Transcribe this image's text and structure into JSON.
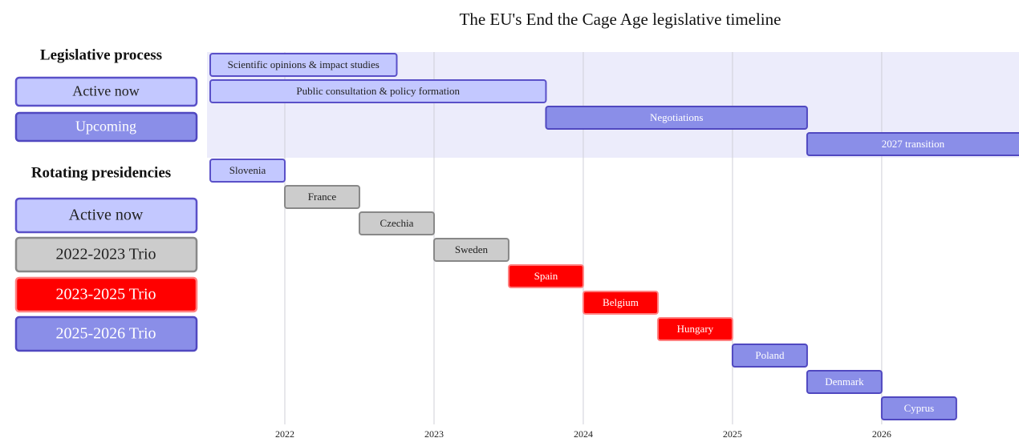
{
  "chart_data": {
    "type": "gantt",
    "title": "The EU's End the Cage Age legislative timeline",
    "xlim": [
      2021.5,
      2026.92
    ],
    "xticks": [
      2022,
      2023,
      2024,
      2025,
      2026
    ],
    "grid": true,
    "legend": [
      {
        "title": "Legislative process",
        "items": [
          {
            "label": "Active now",
            "color": "#c3c8ff",
            "border": "#5a50c8",
            "text_color": "#222222"
          },
          {
            "label": "Upcoming",
            "color": "#8a8ee8",
            "border": "#5048c0",
            "text_color": "#ffffff"
          }
        ]
      },
      {
        "title": "Rotating presidencies",
        "items": [
          {
            "label": "Active now",
            "color": "#c3c8ff",
            "border": "#5a50c8",
            "text_color": "#222222"
          },
          {
            "label": "2022-2023 Trio",
            "color": "#cccccc",
            "border": "#888888",
            "text_color": "#222222"
          },
          {
            "label": "2023-2025 Trio",
            "color": "#ff0000",
            "border": "#ff8080",
            "text_color": "#ffffff"
          },
          {
            "label": "2025-2026 Trio",
            "color": "#8a8ee8",
            "border": "#5048c0",
            "text_color": "#ffffff"
          }
        ]
      }
    ],
    "tasks": [
      {
        "name": "Scientific opinions & impact studies",
        "start": 2021.5,
        "end": 2022.75,
        "color": "#c3c8ff",
        "border": "#5a50c8",
        "text_color": "#222222"
      },
      {
        "name": "Public consultation & policy formation",
        "start": 2021.5,
        "end": 2023.75,
        "color": "#c3c8ff",
        "border": "#5a50c8",
        "text_color": "#222222"
      },
      {
        "name": "Negotiations",
        "start": 2023.75,
        "end": 2025.5,
        "color": "#8a8ee8",
        "border": "#5048c0",
        "text_color": "#ffffff"
      },
      {
        "name": "2027 transition",
        "start": 2025.5,
        "end": 2027,
        "color": "#8a8ee8",
        "border": "#5048c0",
        "text_color": "#ffffff"
      },
      {
        "name": "Slovenia",
        "start": 2021.5,
        "end": 2022,
        "color": "#c3c8ff",
        "border": "#5a50c8",
        "text_color": "#222222"
      },
      {
        "name": "France",
        "start": 2022,
        "end": 2022.5,
        "color": "#cccccc",
        "border": "#888888",
        "text_color": "#222222"
      },
      {
        "name": "Czechia",
        "start": 2022.5,
        "end": 2023,
        "color": "#cccccc",
        "border": "#888888",
        "text_color": "#222222"
      },
      {
        "name": "Sweden",
        "start": 2023,
        "end": 2023.5,
        "color": "#cccccc",
        "border": "#888888",
        "text_color": "#222222"
      },
      {
        "name": "Spain",
        "start": 2023.5,
        "end": 2024,
        "color": "#ff0000",
        "border": "#ff8080",
        "text_color": "#ffffff"
      },
      {
        "name": "Belgium",
        "start": 2024,
        "end": 2024.5,
        "color": "#ff0000",
        "border": "#ff8080",
        "text_color": "#ffffff"
      },
      {
        "name": "Hungary",
        "start": 2024.5,
        "end": 2025,
        "color": "#ff0000",
        "border": "#ff8080",
        "text_color": "#ffffff"
      },
      {
        "name": "Poland",
        "start": 2025,
        "end": 2025.5,
        "color": "#8a8ee8",
        "border": "#5048c0",
        "text_color": "#ffffff"
      },
      {
        "name": "Denmark",
        "start": 2025.5,
        "end": 2026,
        "color": "#8a8ee8",
        "border": "#5048c0",
        "text_color": "#ffffff"
      },
      {
        "name": "Cyprus",
        "start": 2026,
        "end": 2026.5,
        "color": "#8a8ee8",
        "border": "#5048c0",
        "text_color": "#ffffff"
      }
    ]
  }
}
